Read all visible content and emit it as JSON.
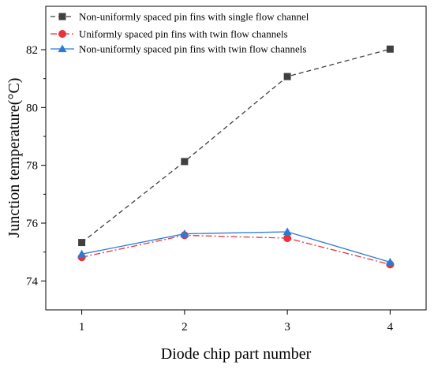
{
  "chart_data": {
    "type": "line",
    "xlabel": "Diode chip part number",
    "ylabel": "Junction temperature(°C)",
    "x": [
      1,
      2,
      3,
      4
    ],
    "xticks": [
      "1",
      "2",
      "3",
      "4"
    ],
    "xlim": [
      0.65,
      4.35
    ],
    "yticks": [
      "74",
      "76",
      "78",
      "80",
      "82"
    ],
    "ytick_values": [
      74,
      76,
      78,
      80,
      82
    ],
    "ylim": [
      73.0,
      83.5
    ],
    "grid": false,
    "legend_position": "top-left",
    "series": [
      {
        "name": "Non-uniformly spaced pin fins with single flow channel",
        "values": [
          75.33,
          78.13,
          81.07,
          82.02
        ],
        "color": "#404040",
        "marker": "square",
        "line_style": "dashed"
      },
      {
        "name": "Uniformly spaced pin fins with twin flow channels",
        "values": [
          74.82,
          75.58,
          75.48,
          74.57
        ],
        "color": "#e8333a",
        "marker": "circle",
        "line_style": "dash-dot"
      },
      {
        "name": "Non-uniformly spaced pin fins with twin flow channels",
        "values": [
          74.93,
          75.63,
          75.7,
          74.65
        ],
        "color": "#2b7bd6",
        "marker": "triangle",
        "line_style": "solid"
      }
    ]
  }
}
